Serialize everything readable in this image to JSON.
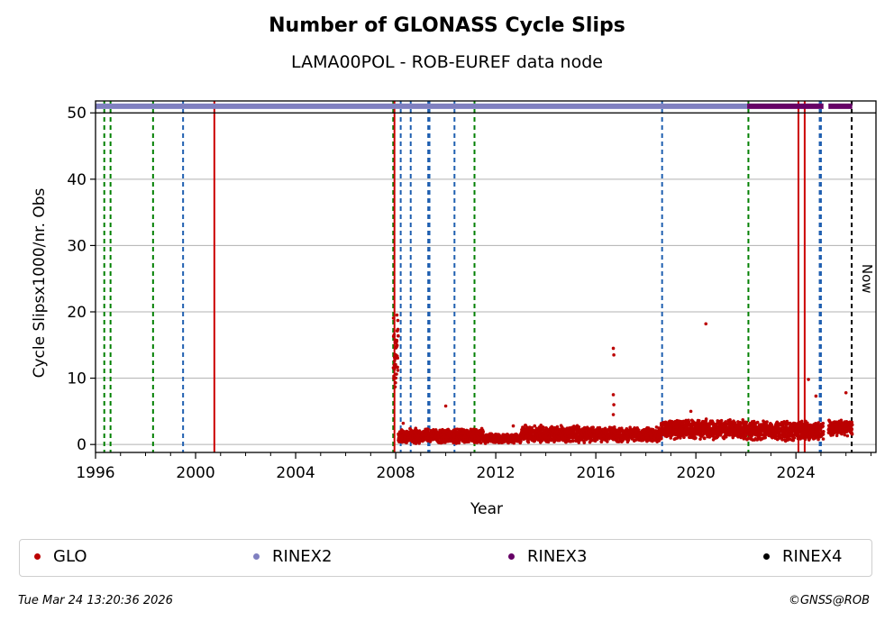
{
  "chart_data": {
    "type": "scatter",
    "title": "Number of GLONASS Cycle Slips",
    "subtitle": "LAMA00POL - ROB-EUREF data node",
    "xlabel": "Year",
    "ylabel": "Cycle Slipsx1000/nr. Obs",
    "xlim": [
      1996.0,
      2027.2
    ],
    "ylim": [
      -1.2,
      51.8
    ],
    "xticks": [
      1996,
      2000,
      2004,
      2008,
      2012,
      2016,
      2020,
      2024
    ],
    "xtick_labels": [
      "1996",
      "2000",
      "2004",
      "2008",
      "2012",
      "2016",
      "2020",
      "2024"
    ],
    "yticks": [
      0,
      10,
      20,
      30,
      40,
      50
    ],
    "ytick_labels": [
      "0",
      "10",
      "20",
      "30",
      "40",
      "50"
    ],
    "grid": "horizontal",
    "now_label": "Now",
    "now_year": 2026.23,
    "vlines": [
      {
        "x": 1996.35,
        "color": "#008000",
        "style": "dashed"
      },
      {
        "x": 1996.6,
        "color": "#008000",
        "style": "dashed"
      },
      {
        "x": 1998.3,
        "color": "#008000",
        "style": "dashed"
      },
      {
        "x": 1999.5,
        "color": "#1f5fb0",
        "style": "dashed"
      },
      {
        "x": 2000.75,
        "color": "#cc0000",
        "style": "solid"
      },
      {
        "x": 2007.9,
        "color": "#008000",
        "style": "dashed"
      },
      {
        "x": 2007.95,
        "color": "#cc0000",
        "style": "solid"
      },
      {
        "x": 2008.2,
        "color": "#1f5fb0",
        "style": "dashed"
      },
      {
        "x": 2008.6,
        "color": "#1f5fb0",
        "style": "dashed"
      },
      {
        "x": 2009.3,
        "color": "#1f5fb0",
        "style": "dashed"
      },
      {
        "x": 2009.35,
        "color": "#1f5fb0",
        "style": "dashed"
      },
      {
        "x": 2010.35,
        "color": "#1f5fb0",
        "style": "dashed"
      },
      {
        "x": 2011.15,
        "color": "#008000",
        "style": "dashed"
      },
      {
        "x": 2018.65,
        "color": "#1f5fb0",
        "style": "dashed"
      },
      {
        "x": 2022.1,
        "color": "#008000",
        "style": "dashed"
      },
      {
        "x": 2024.1,
        "color": "#cc0000",
        "style": "solid"
      },
      {
        "x": 2024.35,
        "color": "#cc0000",
        "style": "solid"
      },
      {
        "x": 2024.95,
        "color": "#1f5fb0",
        "style": "dashed"
      },
      {
        "x": 2025.0,
        "color": "#1f5fb0",
        "style": "dashed"
      },
      {
        "x": 2026.23,
        "color": "#000000",
        "style": "dashed"
      }
    ],
    "rinex_bars": [
      {
        "name": "RINEX2",
        "color": "#8080c0",
        "ranges": [
          [
            1996.0,
            2022.05
          ]
        ]
      },
      {
        "name": "RINEX3",
        "color": "#660066",
        "ranges": [
          [
            2022.05,
            2025.1
          ],
          [
            2025.3,
            2026.25
          ]
        ]
      }
    ],
    "glo_series": {
      "name": "GLO",
      "color": "#bb0000",
      "segments": [
        {
          "start": 2007.9,
          "end": 2008.1,
          "base": 14.0,
          "spread": 8.0
        },
        {
          "start": 2008.1,
          "end": 2011.5,
          "base": 1.3,
          "spread": 1.2
        },
        {
          "start": 2011.5,
          "end": 2013.0,
          "base": 0.9,
          "spread": 0.8
        },
        {
          "start": 2013.0,
          "end": 2016.0,
          "base": 1.6,
          "spread": 1.4
        },
        {
          "start": 2016.0,
          "end": 2018.6,
          "base": 1.5,
          "spread": 1.2
        },
        {
          "start": 2018.6,
          "end": 2022.0,
          "base": 2.3,
          "spread": 1.6
        },
        {
          "start": 2022.0,
          "end": 2025.1,
          "base": 2.1,
          "spread": 1.6
        },
        {
          "start": 2025.3,
          "end": 2026.25,
          "base": 2.5,
          "spread": 1.4
        }
      ],
      "outliers": [
        {
          "x": 2008.3,
          "y": 3.2
        },
        {
          "x": 2010.0,
          "y": 5.8
        },
        {
          "x": 2012.7,
          "y": 2.8
        },
        {
          "x": 2016.7,
          "y": 14.5
        },
        {
          "x": 2016.72,
          "y": 13.5
        },
        {
          "x": 2016.7,
          "y": 7.5
        },
        {
          "x": 2016.72,
          "y": 6.0
        },
        {
          "x": 2016.7,
          "y": 4.5
        },
        {
          "x": 2019.8,
          "y": 5.0
        },
        {
          "x": 2020.4,
          "y": 18.2
        },
        {
          "x": 2024.5,
          "y": 9.8
        },
        {
          "x": 2024.8,
          "y": 7.3
        },
        {
          "x": 2026.0,
          "y": 7.8
        }
      ]
    },
    "legend": [
      {
        "label": "GLO",
        "color": "#bb0000"
      },
      {
        "label": "RINEX2",
        "color": "#8080c0"
      },
      {
        "label": "RINEX3",
        "color": "#660066"
      },
      {
        "label": "RINEX4",
        "color": "#000000"
      }
    ]
  },
  "footer": {
    "timestamp": "Tue Mar 24 13:20:36 2026",
    "copyright": "©GNSS@ROB"
  }
}
